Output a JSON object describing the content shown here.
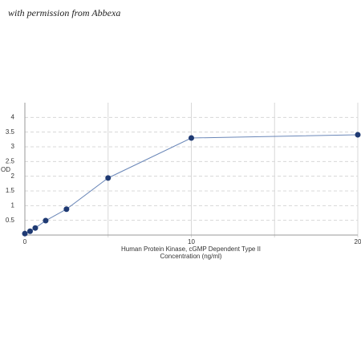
{
  "watermark": "with permission from Abbexa",
  "chart_data": {
    "type": "line",
    "ylabel": "OD",
    "xlabel": [
      "Human Protein Kinase, cGMP Dependent Type II",
      "Concentration (ng/ml)"
    ],
    "x": [
      0,
      0.3125,
      0.625,
      1.25,
      2.5,
      5,
      10,
      20
    ],
    "values": [
      0.05,
      0.13,
      0.24,
      0.49,
      0.88,
      1.94,
      3.3,
      3.41
    ],
    "color": "#6a87b8",
    "marker_color": "#1f3a73",
    "xlim": [
      0,
      20
    ],
    "xticks": [
      0,
      10,
      20
    ],
    "xgrid": [
      0,
      5,
      10,
      15,
      20
    ],
    "ylim": [
      0,
      4.5
    ],
    "yticks": [
      0.5,
      1,
      1.5,
      2,
      2.5,
      3,
      3.5,
      4
    ],
    "grid": true
  }
}
